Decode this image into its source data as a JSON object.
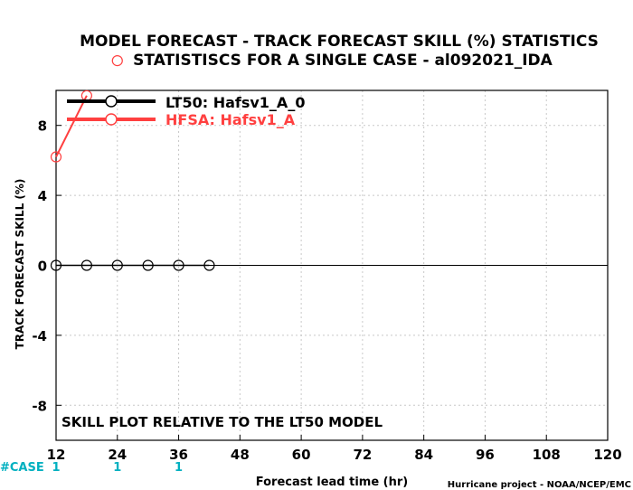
{
  "chart_data": {
    "type": "line",
    "title": "MODEL FORECAST - TRACK FORECAST SKILL (%) STATISTICS",
    "subtitle": "STATISTISCS FOR A SINGLE CASE - al092021_IDA",
    "xlabel": "Forecast lead time (hr)",
    "ylabel": "TRACK FORECAST SKILL (%)",
    "xlim": [
      12,
      120
    ],
    "ylim": [
      -10,
      10
    ],
    "x_ticks": [
      12,
      24,
      36,
      48,
      60,
      72,
      84,
      96,
      108,
      120
    ],
    "y_ticks": [
      -8,
      -4,
      0,
      4,
      8
    ],
    "grid": true,
    "legend_position": "top-left",
    "annotation": "SKILL PLOT RELATIVE TO THE LT50 MODEL",
    "case_label": "#CASE",
    "case_counts": [
      {
        "x": 12,
        "label": "1"
      },
      {
        "x": 24,
        "label": "1"
      },
      {
        "x": 36,
        "label": "1"
      }
    ],
    "footer": "Hurricane project - NOAA/NCEP/EMC",
    "series": [
      {
        "name": "LT50: Hafsv1_A_0",
        "color": "#000000",
        "x": [
          12,
          18,
          24,
          30,
          36,
          42
        ],
        "y": [
          0,
          0,
          0,
          0,
          0,
          0
        ]
      },
      {
        "name": "HFSA: Hafsv1_A",
        "color": "#ff4040",
        "x": [
          12,
          18
        ],
        "y": [
          6.2,
          9.7
        ]
      }
    ],
    "out_of_range_markers": [
      {
        "x": 24,
        "y": 11.7,
        "color": "#ff4040"
      }
    ]
  }
}
